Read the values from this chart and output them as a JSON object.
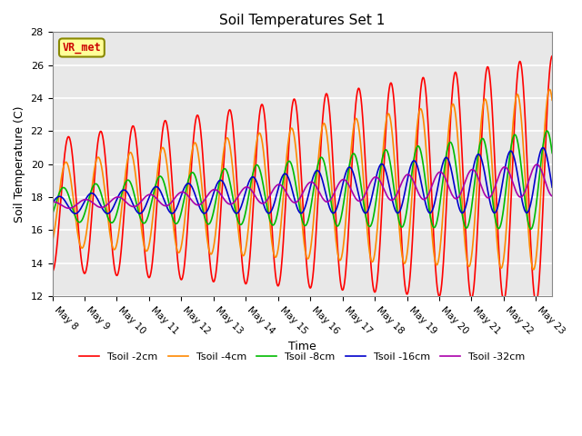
{
  "title": "Soil Temperatures Set 1",
  "xlabel": "Time",
  "ylabel": "Soil Temperature (C)",
  "ylim": [
    12,
    28
  ],
  "xlim_days": [
    0,
    15.5
  ],
  "tick_labels": [
    "May 8",
    "May 9",
    "May 10",
    "May 11",
    "May 12",
    "May 13",
    "May 14",
    "May 15",
    "May 16",
    "May 17",
    "May 18",
    "May 19",
    "May 20",
    "May 21",
    "May 22",
    "May 23"
  ],
  "series": {
    "Tsoil -2cm": {
      "color": "#ff0000",
      "lw": 1.2,
      "base": 17.5,
      "amp_start": 4.0,
      "amp_end": 7.5,
      "phase": 0.0,
      "trend": 0.1
    },
    "Tsoil -4cm": {
      "color": "#ff8800",
      "lw": 1.2,
      "base": 17.5,
      "amp_start": 2.5,
      "amp_end": 5.5,
      "phase": 0.5,
      "trend": 0.1
    },
    "Tsoil -8cm": {
      "color": "#00bb00",
      "lw": 1.2,
      "base": 17.5,
      "amp_start": 1.0,
      "amp_end": 3.0,
      "phase": 1.0,
      "trend": 0.1
    },
    "Tsoil -16cm": {
      "color": "#0000cc",
      "lw": 1.2,
      "base": 17.5,
      "amp_start": 0.5,
      "amp_end": 2.0,
      "phase": 1.8,
      "trend": 0.1
    },
    "Tsoil -32cm": {
      "color": "#aa00aa",
      "lw": 1.2,
      "base": 17.5,
      "amp_start": 0.2,
      "amp_end": 1.0,
      "phase": 3.0,
      "trend": 0.1
    }
  },
  "annotation_text": "VR_met",
  "bg_color": "#e8e8e8",
  "fig_bg": "#ffffff",
  "grid_color": "#ffffff"
}
